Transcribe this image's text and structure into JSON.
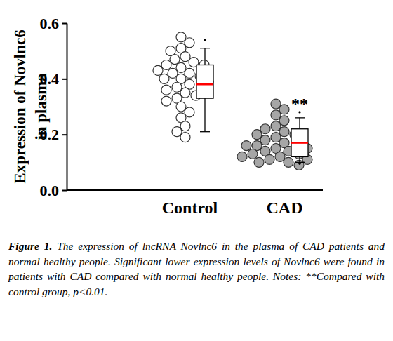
{
  "chart_data": {
    "type": "scatter",
    "categories": [
      "Control",
      "CAD"
    ],
    "values": [
      [
        0.55,
        0.53,
        0.51,
        0.5,
        0.48,
        0.47,
        0.46,
        0.45,
        0.45,
        0.44,
        0.43,
        0.42,
        0.42,
        0.41,
        0.4,
        0.4,
        0.39,
        0.38,
        0.37,
        0.36,
        0.35,
        0.34,
        0.33,
        0.32,
        0.3,
        0.28,
        0.26,
        0.23,
        0.21,
        0.19
      ],
      [
        0.31,
        0.29,
        0.27,
        0.25,
        0.23,
        0.22,
        0.21,
        0.2,
        0.2,
        0.19,
        0.18,
        0.17,
        0.17,
        0.16,
        0.16,
        0.15,
        0.15,
        0.14,
        0.14,
        0.13,
        0.13,
        0.12,
        0.12,
        0.11,
        0.11,
        0.1,
        0.1,
        0.09
      ]
    ],
    "colors": [
      "#ffffff",
      "#a6a6a6"
    ],
    "boxes": [
      {
        "whisker_low": 0.21,
        "q1": 0.33,
        "median": 0.38,
        "q3": 0.45,
        "whisker_high": 0.51,
        "outliers": [
          0.54
        ]
      },
      {
        "whisker_low": 0.1,
        "q1": 0.12,
        "median": 0.17,
        "q3": 0.22,
        "whisker_high": 0.26,
        "outliers": [
          0.28,
          0.095
        ]
      }
    ],
    "ylabel": [
      "Expression of Novlnc6",
      "in plasma"
    ],
    "ylim": [
      0,
      0.6
    ],
    "yticks": [
      {
        "value": 0,
        "label": "0.0"
      },
      0.2,
      0.4,
      0.6
    ],
    "annotations": [
      {
        "text": "**",
        "category": 1
      }
    ],
    "caption_label": "Figure 1.",
    "caption": "The expression of lncRNA Novlnc6 in the plasma of CAD patients and normal healthy people. Significant lower expression levels of Novlnc6 were found in patients with CAD compared with normal healthy people. Notes: **Compared with control group, p<0.01."
  }
}
